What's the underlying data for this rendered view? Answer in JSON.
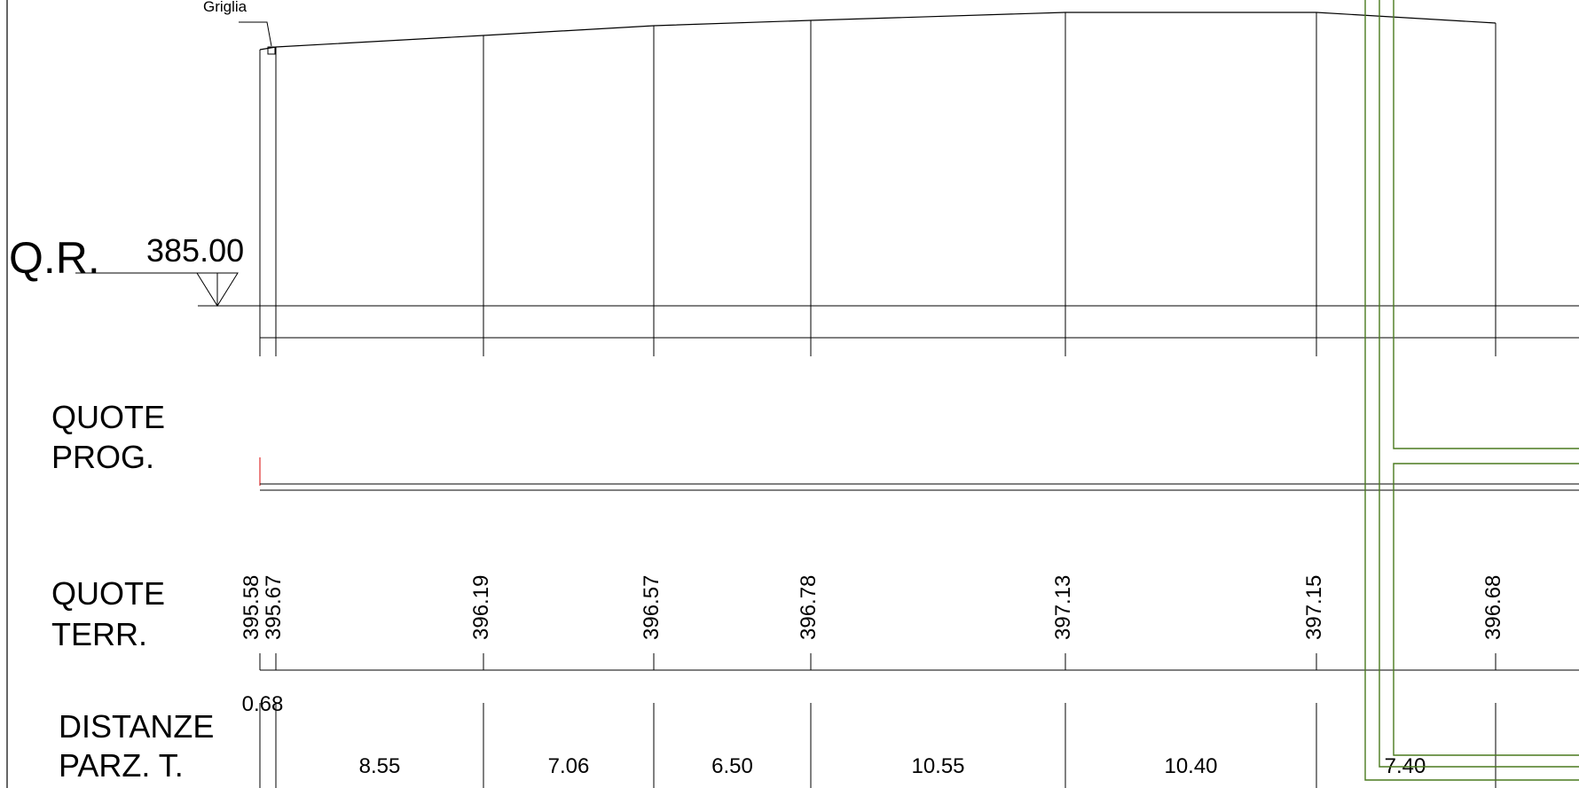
{
  "labels": {
    "grid_callout": "Griglia",
    "reference_label": "Q.R.",
    "reference_value": "385.00",
    "row_quote_prog_1": "QUOTE",
    "row_quote_prog_2": "PROG.",
    "row_quote_terr_1": "QUOTE",
    "row_quote_terr_2": "TERR.",
    "row_distanze_1": "DISTANZE",
    "row_distanze_2": "PARZ. T."
  },
  "stations": [
    {
      "terrain": "395.58"
    },
    {
      "terrain": "395.67"
    },
    {
      "terrain": "396.19"
    },
    {
      "terrain": "396.57"
    },
    {
      "terrain": "396.78"
    },
    {
      "terrain": "397.13"
    },
    {
      "terrain": "397.15"
    },
    {
      "terrain": "396.68"
    }
  ],
  "partial_distances": [
    "0.68",
    "8.55",
    "7.06",
    "6.50",
    "10.55",
    "10.40",
    "7.40"
  ],
  "colors": {
    "line": "#000000",
    "overlay": "#4a7a1e",
    "marker": "#e03030"
  }
}
